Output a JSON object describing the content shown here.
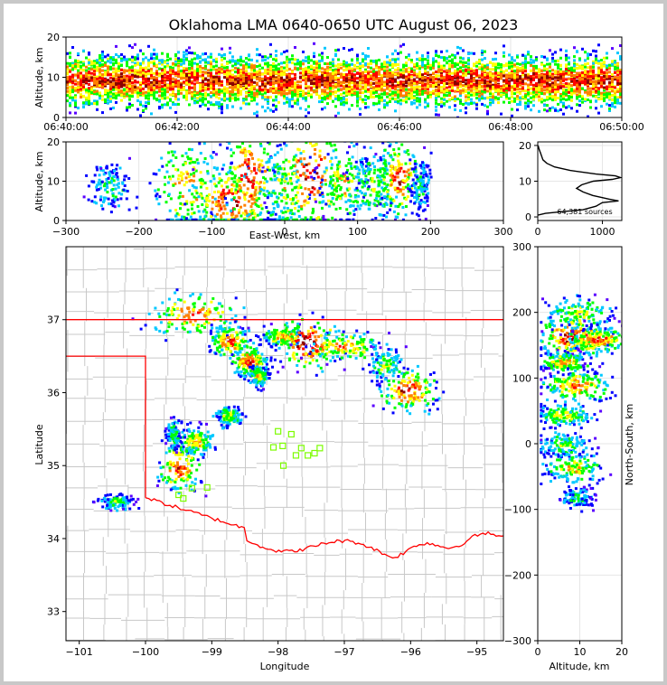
{
  "chart_data": [
    {
      "id": "time-height",
      "type": "heatmap",
      "title": "Oklahoma LMA 0640-0650 UTC August 06, 2023",
      "xlabel": "",
      "ylabel": "Altitude, km",
      "x_ticks": [
        "06:40:00",
        "06:42:00",
        "06:44:00",
        "06:46:00",
        "06:48:00",
        "06:50:00"
      ],
      "x_range": [
        "06:40:00",
        "06:50:00"
      ],
      "y_ticks": [
        0,
        10,
        20
      ],
      "ylim": [
        0,
        20
      ],
      "colormap": "rainbow (blue, green, yellow, red, dark red, white at highest density)",
      "grid": true
    },
    {
      "id": "ew-altitude",
      "type": "heatmap",
      "xlabel": "East-West, km",
      "ylabel": "Altitude, km",
      "x_ticks": [
        -300,
        -200,
        -100,
        0,
        100,
        200,
        300
      ],
      "xlim": [
        -300,
        300
      ],
      "y_ticks": [
        0,
        10,
        20
      ],
      "ylim": [
        0,
        20
      ],
      "clusters": [
        {
          "x": -240,
          "alt": 9,
          "w": 30,
          "h": 6,
          "intensity": 0.35
        },
        {
          "x": -135,
          "alt": 9,
          "w": 45,
          "h": 12,
          "intensity": 0.7
        },
        {
          "x": -75,
          "alt": 5,
          "w": 55,
          "h": 9,
          "intensity": 0.9
        },
        {
          "x": -50,
          "alt": 12,
          "w": 35,
          "h": 14,
          "intensity": 0.85
        },
        {
          "x": 0,
          "alt": 8,
          "w": 30,
          "h": 14,
          "intensity": 0.55
        },
        {
          "x": 35,
          "alt": 12,
          "w": 50,
          "h": 16,
          "intensity": 0.85
        },
        {
          "x": 80,
          "alt": 10,
          "w": 35,
          "h": 10,
          "intensity": 0.6
        },
        {
          "x": 120,
          "alt": 9,
          "w": 30,
          "h": 9,
          "intensity": 0.5
        },
        {
          "x": 155,
          "alt": 11,
          "w": 30,
          "h": 10,
          "intensity": 0.8
        },
        {
          "x": 185,
          "alt": 9,
          "w": 15,
          "h": 7,
          "intensity": 0.35
        }
      ],
      "grid": true
    },
    {
      "id": "altitude-histogram",
      "type": "line",
      "annotation": "64,381 sources",
      "x_ticks": [
        0,
        1000
      ],
      "xlim": [
        0,
        1300
      ],
      "y_ticks": [
        0,
        10,
        20
      ],
      "ylim": [
        -1,
        21
      ],
      "series": [
        {
          "altitude": [
            0.5,
            1,
            1.5,
            2,
            3,
            4,
            4.5,
            5,
            6,
            7,
            8,
            9,
            10,
            10.5,
            11,
            11.5,
            12,
            13,
            14,
            15,
            16,
            17,
            18,
            19,
            20
          ],
          "count": [
            0,
            120,
            400,
            700,
            900,
            1000,
            1250,
            1100,
            850,
            700,
            600,
            680,
            860,
            1150,
            1280,
            1200,
            900,
            500,
            260,
            140,
            80,
            60,
            40,
            20,
            5
          ]
        }
      ],
      "grid": true
    },
    {
      "id": "plan-view",
      "type": "heatmap",
      "xlabel": "Longitude",
      "ylabel": "Latitude",
      "x_ticks": [
        -101,
        -100,
        -99,
        -98,
        -97,
        -96,
        -95
      ],
      "xlim": [
        -101.2,
        -94.6
      ],
      "y_ticks": [
        33,
        34,
        35,
        36,
        37
      ],
      "ylim": [
        32.6,
        38.0
      ],
      "state_boundary_color": "#ff0000",
      "county_line_color": "#c8c8c8",
      "station_marker_color": "#7cfc00",
      "stations": [
        {
          "lon": -98.0,
          "lat": 35.47
        },
        {
          "lon": -97.8,
          "lat": 35.43
        },
        {
          "lon": -97.93,
          "lat": 35.27
        },
        {
          "lon": -98.07,
          "lat": 35.25
        },
        {
          "lon": -97.65,
          "lat": 35.24
        },
        {
          "lon": -97.37,
          "lat": 35.24
        },
        {
          "lon": -97.45,
          "lat": 35.17
        },
        {
          "lon": -97.55,
          "lat": 35.14
        },
        {
          "lon": -97.73,
          "lat": 35.14
        },
        {
          "lon": -97.92,
          "lat": 35.0
        },
        {
          "lon": -99.07,
          "lat": 34.7
        },
        {
          "lon": -99.3,
          "lat": 34.69
        },
        {
          "lon": -99.5,
          "lat": 34.6
        },
        {
          "lon": -99.43,
          "lat": 34.55
        }
      ],
      "clusters": [
        {
          "lon": -99.3,
          "lat": 37.1,
          "w": 0.7,
          "h": 0.3,
          "intensity": 0.75
        },
        {
          "lon": -98.75,
          "lat": 36.72,
          "w": 0.3,
          "h": 0.2,
          "intensity": 0.8
        },
        {
          "lon": -98.45,
          "lat": 36.45,
          "w": 0.25,
          "h": 0.2,
          "intensity": 0.85
        },
        {
          "lon": -98.3,
          "lat": 36.25,
          "w": 0.15,
          "h": 0.15,
          "intensity": 0.6
        },
        {
          "lon": -97.95,
          "lat": 36.78,
          "w": 0.3,
          "h": 0.15,
          "intensity": 0.7
        },
        {
          "lon": -97.55,
          "lat": 36.7,
          "w": 0.5,
          "h": 0.35,
          "intensity": 0.95
        },
        {
          "lon": -97.0,
          "lat": 36.65,
          "w": 0.6,
          "h": 0.2,
          "intensity": 0.7
        },
        {
          "lon": -96.4,
          "lat": 36.4,
          "w": 0.25,
          "h": 0.25,
          "intensity": 0.5
        },
        {
          "lon": -96.05,
          "lat": 36.05,
          "w": 0.45,
          "h": 0.3,
          "intensity": 0.85
        },
        {
          "lon": -98.75,
          "lat": 35.7,
          "w": 0.2,
          "h": 0.15,
          "intensity": 0.55
        },
        {
          "lon": -99.25,
          "lat": 35.35,
          "w": 0.25,
          "h": 0.2,
          "intensity": 0.7
        },
        {
          "lon": -99.5,
          "lat": 35.0,
          "w": 0.3,
          "h": 0.35,
          "intensity": 0.8
        },
        {
          "lon": -99.6,
          "lat": 35.45,
          "w": 0.12,
          "h": 0.2,
          "intensity": 0.4
        },
        {
          "lon": -100.45,
          "lat": 34.52,
          "w": 0.25,
          "h": 0.1,
          "intensity": 0.45
        }
      ],
      "grid": false
    },
    {
      "id": "ns-altitude",
      "type": "heatmap",
      "xlabel": "Altitude, km",
      "ylabel": "North-South, km",
      "x_ticks": [
        0,
        10,
        20
      ],
      "xlim": [
        0,
        20
      ],
      "y_ticks": [
        -300,
        -200,
        -100,
        0,
        100,
        200,
        300
      ],
      "ylim": [
        -300,
        300
      ],
      "clusters": [
        {
          "ns": 165,
          "alt": 8,
          "w": 8,
          "h": 35,
          "intensity": 0.9
        },
        {
          "ns": 160,
          "alt": 14,
          "w": 7,
          "h": 20,
          "intensity": 0.8
        },
        {
          "ns": 200,
          "alt": 10,
          "w": 8,
          "h": 25,
          "intensity": 0.55
        },
        {
          "ns": 125,
          "alt": 6,
          "w": 6,
          "h": 15,
          "intensity": 0.7
        },
        {
          "ns": 90,
          "alt": 9,
          "w": 8,
          "h": 25,
          "intensity": 0.75
        },
        {
          "ns": 45,
          "alt": 6,
          "w": 7,
          "h": 15,
          "intensity": 0.6
        },
        {
          "ns": 0,
          "alt": 6,
          "w": 7,
          "h": 20,
          "intensity": 0.45
        },
        {
          "ns": -35,
          "alt": 8,
          "w": 7,
          "h": 25,
          "intensity": 0.6
        },
        {
          "ns": -80,
          "alt": 9,
          "w": 4,
          "h": 15,
          "intensity": 0.35
        }
      ],
      "grid": true
    }
  ]
}
